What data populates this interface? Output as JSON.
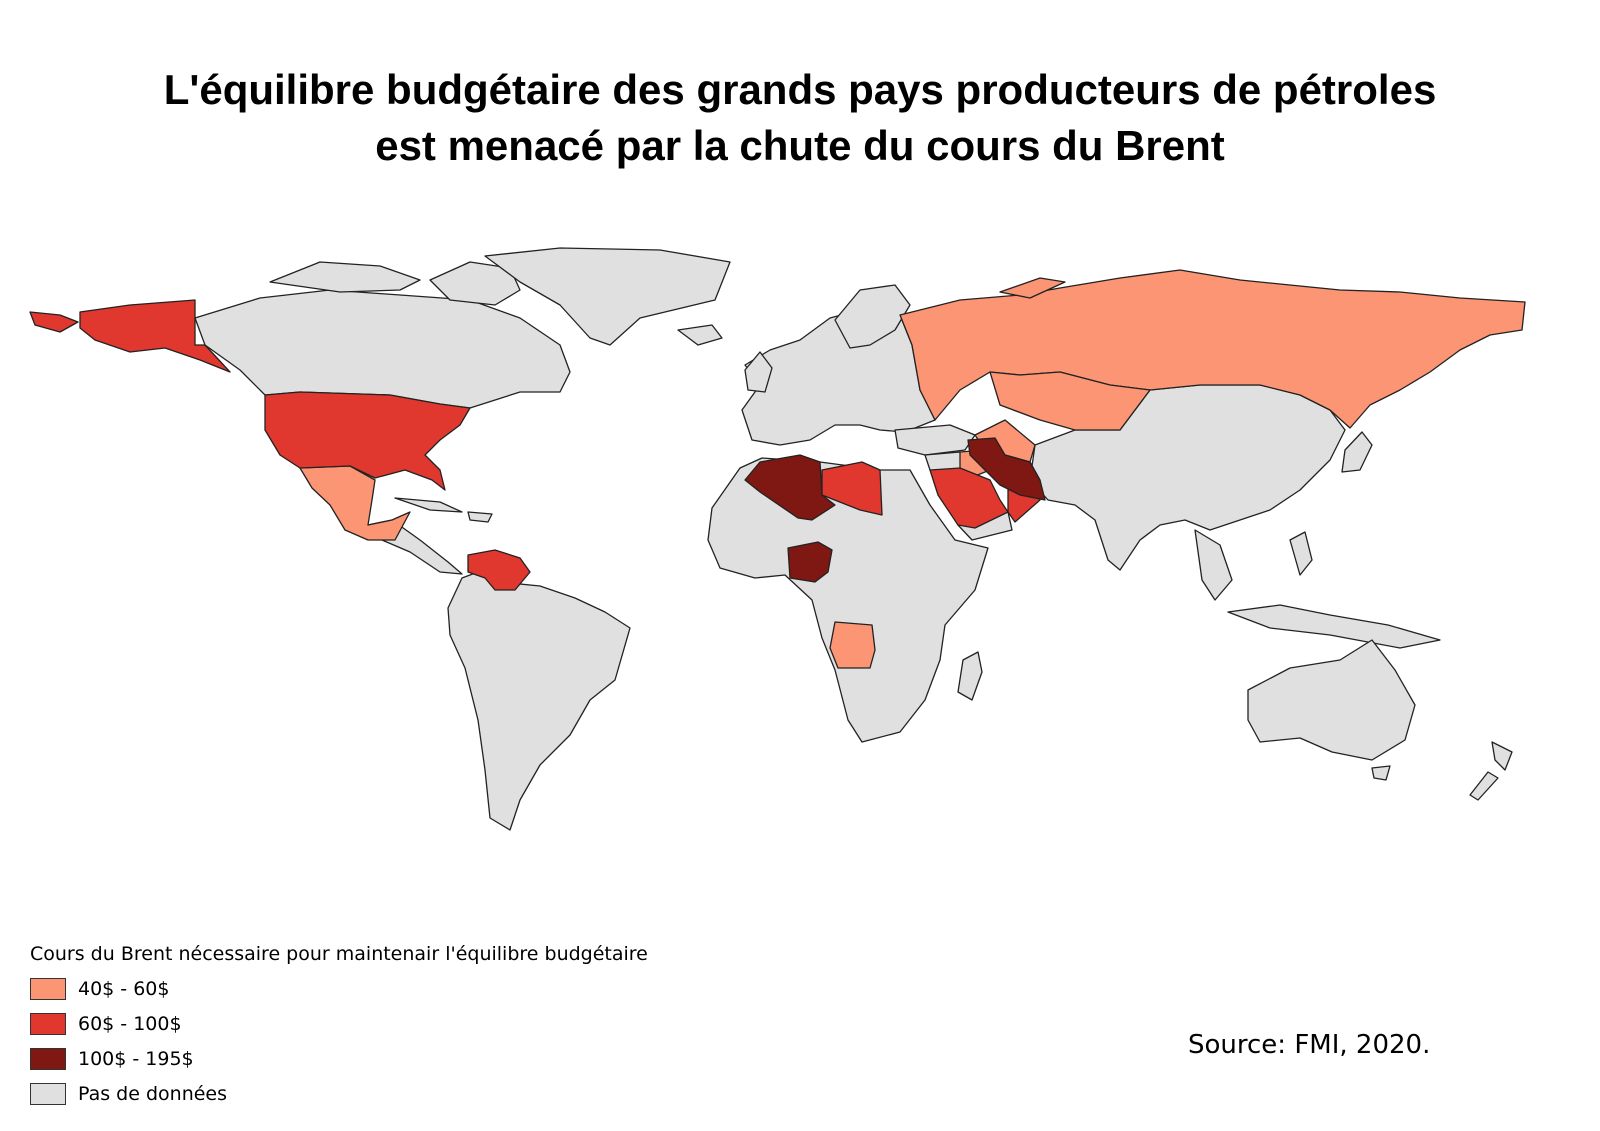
{
  "title": {
    "line1": "L'équilibre budgétaire des grands pays producteurs de pétroles",
    "line2": "est menacé par la chute du cours du Brent"
  },
  "legend": {
    "title": "Cours du Brent nécessaire pour maintenair l'équilibre budgétaire",
    "items": [
      {
        "label": "40$ - 60$",
        "color": "#fb9574"
      },
      {
        "label": "60$ - 100$",
        "color": "#e0382f"
      },
      {
        "label": "100$ - 195$",
        "color": "#7f1712"
      },
      {
        "label": "Pas de données",
        "color": "#e0e0e0"
      }
    ]
  },
  "source": "Source: FMI, 2020.",
  "colors": {
    "no_data": "#e0e0e0",
    "border": "#222222",
    "class_40_60": "#fb9574",
    "class_60_100": "#e0382f",
    "class_100_195": "#7f1712"
  },
  "countries": [
    {
      "name": "Alaska (États-Unis)",
      "class": "60-100"
    },
    {
      "name": "États-Unis",
      "class": "60-100"
    },
    {
      "name": "Mexique",
      "class": "40-60"
    },
    {
      "name": "Venezuela",
      "class": "60-100"
    },
    {
      "name": "Algérie",
      "class": "100-195"
    },
    {
      "name": "Libye",
      "class": "60-100"
    },
    {
      "name": "Nigeria",
      "class": "100-195"
    },
    {
      "name": "Angola",
      "class": "40-60"
    },
    {
      "name": "Arabie saoudite",
      "class": "60-100"
    },
    {
      "name": "Oman",
      "class": "60-100"
    },
    {
      "name": "Iran",
      "class": "100-195"
    },
    {
      "name": "Irak",
      "class": "40-60"
    },
    {
      "name": "Russie",
      "class": "40-60"
    },
    {
      "name": "Kazakhstan",
      "class": "40-60"
    },
    {
      "name": "Azerbaïdjan",
      "class": "40-60"
    },
    {
      "name": "Turkménistan",
      "class": "40-60"
    }
  ]
}
